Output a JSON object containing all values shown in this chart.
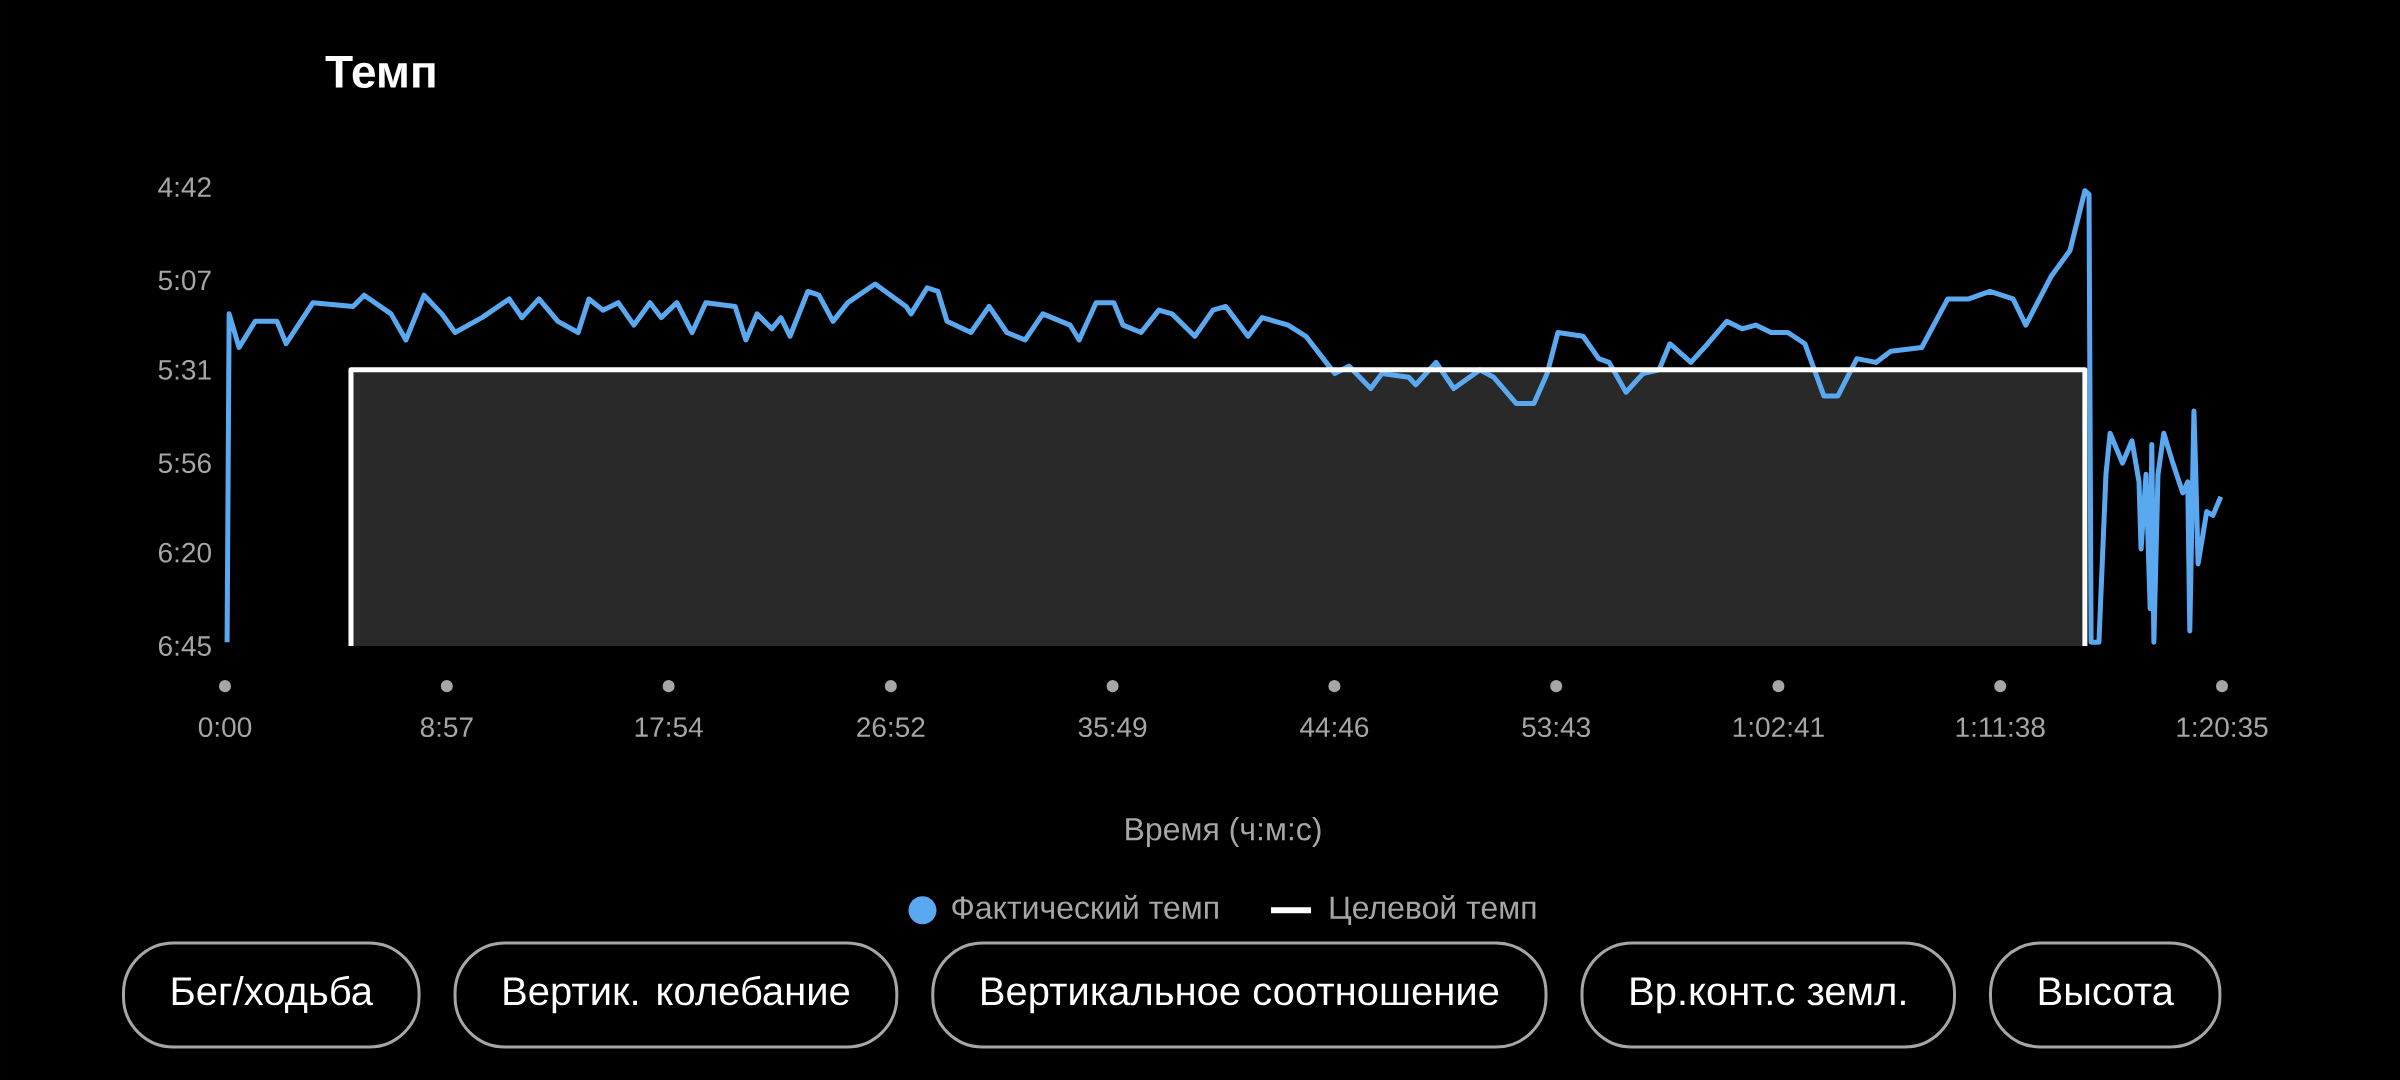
{
  "chart_data": {
    "type": "line",
    "title": "Темп",
    "xlabel": "Время (ч:м:с)",
    "legend": "bottom",
    "xlim": [
      0,
      4835
    ],
    "xticks": [
      {
        "value": 0,
        "label": "0:00"
      },
      {
        "value": 537,
        "label": "8:57"
      },
      {
        "value": 1074,
        "label": "17:54"
      },
      {
        "value": 1612,
        "label": "26:52"
      },
      {
        "value": 2149,
        "label": "35:49"
      },
      {
        "value": 2686,
        "label": "44:46"
      },
      {
        "value": 3223,
        "label": "53:43"
      },
      {
        "value": 3761,
        "label": "1:02:41"
      },
      {
        "value": 4298,
        "label": "1:11:38"
      },
      {
        "value": 4835,
        "label": "1:20:35"
      }
    ],
    "ylim": [
      405,
      282
    ],
    "yticks": [
      {
        "value": 282,
        "label": "4:42"
      },
      {
        "value": 307,
        "label": "5:07"
      },
      {
        "value": 331,
        "label": "5:31"
      },
      {
        "value": 356,
        "label": "5:56"
      },
      {
        "value": 380,
        "label": "6:20"
      },
      {
        "value": 405,
        "label": "6:45"
      }
    ],
    "series": [
      {
        "name": "Фактический темп",
        "color": "#5aa9f0",
        "x": [
          5,
          10,
          34,
          73,
          126,
          148,
          213,
          310,
          337,
          402,
          438,
          482,
          525,
          557,
          622,
          688,
          719,
          760,
          806,
          855,
          881,
          915,
          952,
          990,
          1029,
          1056,
          1094,
          1131,
          1164,
          1235,
          1261,
          1288,
          1324,
          1346,
          1368,
          1411,
          1438,
          1472,
          1508,
          1574,
          1649,
          1661,
          1700,
          1726,
          1748,
          1806,
          1850,
          1893,
          1937,
          1980,
          2046,
          2068,
          2109,
          2152,
          2174,
          2218,
          2261,
          2293,
          2348,
          2392,
          2423,
          2477,
          2511,
          2574,
          2617,
          2673,
          2687,
          2721,
          2774,
          2801,
          2866,
          2883,
          2932,
          2975,
          3038,
          3072,
          3126,
          3169,
          3201,
          3227,
          3288,
          3326,
          3351,
          3392,
          3433,
          3472,
          3498,
          3549,
          3590,
          3636,
          3673,
          3706,
          3743,
          3784,
          3825,
          3871,
          3905,
          3951,
          3997,
          4033,
          4108,
          4171,
          4222,
          4273,
          4329,
          4360,
          4421,
          4467,
          4503,
          4513,
          4518,
          4537,
          4554,
          4564,
          4594,
          4617,
          4634,
          4639,
          4651,
          4661,
          4665,
          4670,
          4680,
          4694,
          4716,
          4740,
          4752,
          4757,
          4767,
          4772,
          4777,
          4798,
          4813,
          4832
        ],
        "values": [
          404,
          316,
          325,
          318,
          318,
          324,
          313,
          314,
          311,
          316,
          323,
          311,
          316,
          321,
          317,
          312,
          317,
          312,
          318,
          321,
          312,
          315,
          313,
          319,
          313,
          317,
          313,
          321,
          313,
          314,
          323,
          316,
          320,
          317,
          322,
          310,
          311,
          318,
          313,
          308,
          314,
          316,
          309,
          310,
          318,
          321,
          314,
          321,
          323,
          316,
          319,
          323,
          313,
          313,
          319,
          321,
          315,
          316,
          322,
          315,
          314,
          322,
          317,
          319,
          322,
          330,
          332,
          330,
          336,
          332,
          333,
          335,
          329,
          336,
          331,
          333,
          340,
          340,
          332,
          321,
          322,
          328,
          329,
          337,
          332,
          331,
          324,
          329,
          324,
          318,
          320,
          319,
          321,
          321,
          324,
          338,
          338,
          328,
          329,
          326,
          325,
          312,
          312,
          310,
          312,
          319,
          306,
          299,
          283,
          284,
          404,
          404,
          359,
          348,
          356,
          350,
          361,
          379,
          359,
          395,
          351,
          404,
          359,
          348,
          356,
          364,
          361,
          401,
          342,
          361,
          383,
          369,
          370,
          365
        ]
      },
      {
        "name": "Целевой темп",
        "type": "area",
        "color": "#ffffff",
        "x": [
          305,
          305,
          4503,
          4503
        ],
        "values": [
          405,
          331,
          331,
          405
        ]
      }
    ],
    "annotations": [
      "Бег/ходьба",
      "Вертик. колебание",
      "Вертикальное соотношение",
      "Вр.конт.с земл.",
      "Высота"
    ]
  }
}
